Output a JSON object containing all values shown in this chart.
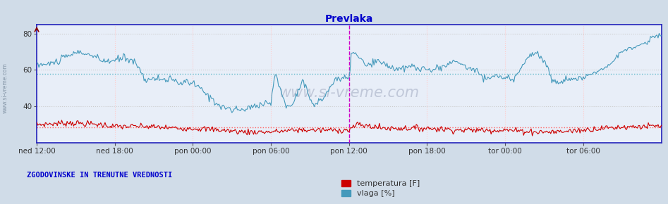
{
  "title": "Prevlaka",
  "title_color": "#0000cc",
  "background_color": "#d0dce8",
  "plot_bg_color": "#e8eef8",
  "footer_bg_color": "#d0dce8",
  "ylabel_left": "",
  "xlabel": "",
  "xlim": [
    0,
    576
  ],
  "ylim": [
    20,
    85
  ],
  "yticks": [
    40,
    60,
    80
  ],
  "x_tick_positions": [
    0,
    72,
    144,
    216,
    288,
    360,
    432,
    504
  ],
  "x_tick_labels": [
    "ned 12:00",
    "ned 18:00",
    "pon 00:00",
    "pon 06:00",
    "pon 12:00",
    "pon 18:00",
    "tor 00:00",
    "tor 06:00"
  ],
  "mean_temp": 28.5,
  "mean_hum": 58.0,
  "temp_color": "#cc0000",
  "hum_color": "#4499bb",
  "mean_temp_color": "#ff6666",
  "mean_hum_color": "#66bbcc",
  "vline_pos": 288,
  "vline_color": "#cc00cc",
  "watermark": "www.si-vreme.com",
  "watermark_color": "#b0b8cc",
  "footer_text": "ZGODOVINSKE IN TRENUTNE VREDNOSTI",
  "footer_color": "#0000cc",
  "legend_items": [
    {
      "label": "temperatura [F]",
      "color": "#cc0000"
    },
    {
      "label": "vlaga [%]",
      "color": "#4499bb"
    }
  ],
  "left_label": "www.si-vreme.com",
  "left_label_color": "#8899aa",
  "border_color": "#2222bb",
  "vgrid_color": "#ffcccc",
  "hgrid_color": "#cccccc"
}
